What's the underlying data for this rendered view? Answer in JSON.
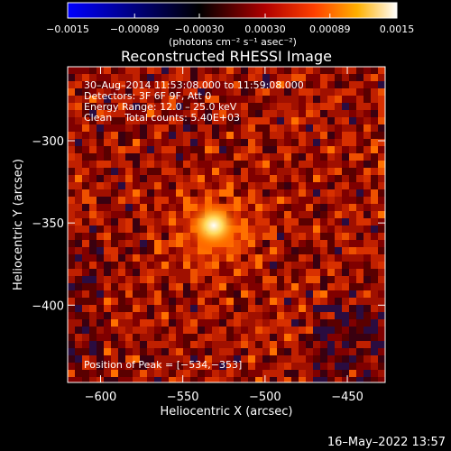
{
  "chart_data": {
    "type": "heatmap",
    "title": "Reconstructed RHESSI Image",
    "xlabel": "Heliocentric X (arcsec)",
    "ylabel": "Heliocentric Y (arcsec)",
    "xlim": [
      -620,
      -427
    ],
    "ylim": [
      -447,
      -255
    ],
    "xticks": [
      -600,
      -550,
      -500,
      -450
    ],
    "xtick_labels": [
      "−600",
      "−550",
      "−500",
      "−450"
    ],
    "yticks": [
      -300,
      -350,
      -400
    ],
    "ytick_labels": [
      "−300",
      "−350",
      "−400"
    ],
    "colorbar": {
      "min": -0.0015,
      "max": 0.0015,
      "ticks": [
        -0.0015,
        -0.00089,
        -0.0003,
        0.0003,
        0.00089,
        0.0015
      ],
      "tick_labels": [
        "−0.0015",
        "−0.00089",
        "−0.00030",
        "0.00030",
        "0.00089",
        "0.0015"
      ],
      "units": "(photons cm⁻² s⁻¹ asec⁻²)",
      "colors": [
        "#0000ff",
        "#000000",
        "#b00000",
        "#ff4000",
        "#ffb000",
        "#ffffff"
      ]
    },
    "peak": {
      "x": -534,
      "y": -353
    },
    "annotations": {
      "time": "30–Aug–2014 11:53:08.000 to 11:59:08.000",
      "detectors": "Detectors: 3F 6F 9F, Att 0",
      "energy": "Energy Range: 12.0 – 25.0 keV",
      "method": "Clean    Total counts: 5.40E+03",
      "peak_text": "Position of Peak = [−534,−353]"
    }
  },
  "footer": {
    "date": "16–May–2022 13:57"
  }
}
